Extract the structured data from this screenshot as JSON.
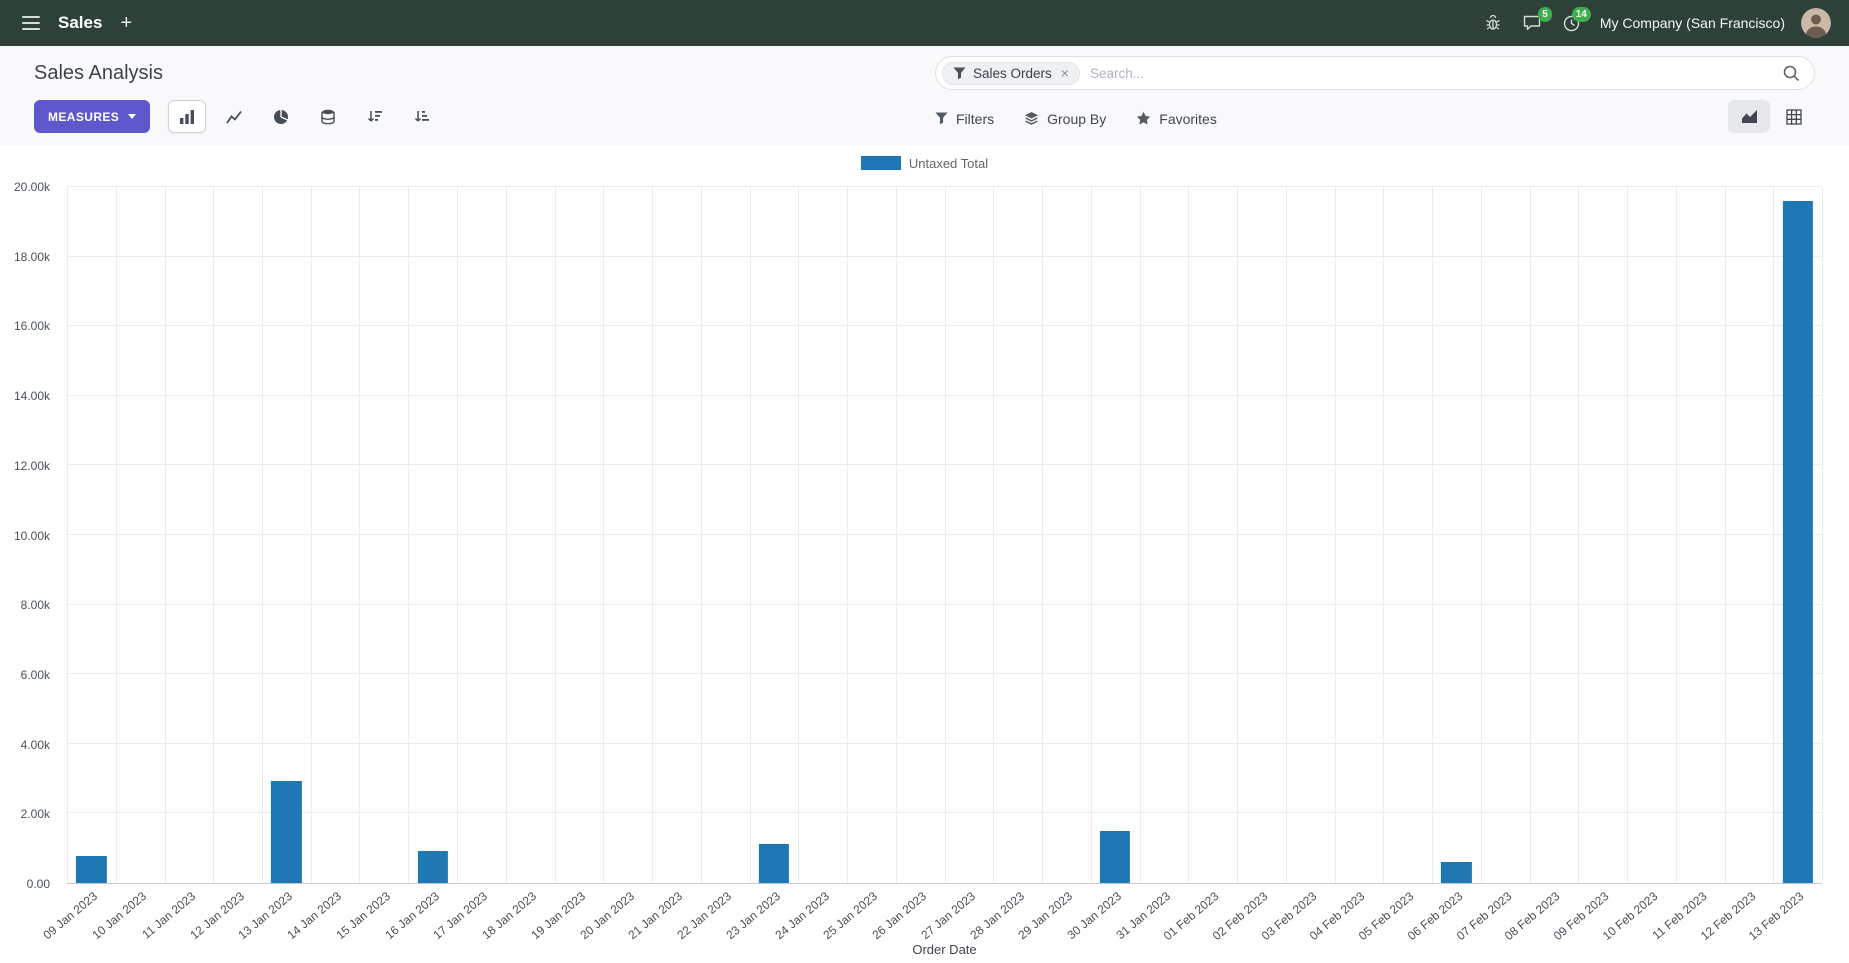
{
  "navbar": {
    "app_name": "Sales",
    "company": "My Company (San Francisco)",
    "message_badge": "5",
    "activity_badge": "14"
  },
  "icons": {
    "close": "×",
    "plus": "+"
  },
  "control_panel": {
    "title": "Sales Analysis",
    "measures_label": "Measures",
    "search": {
      "facet_label": "Sales Orders",
      "placeholder": "Search..."
    },
    "filters_label": "Filters",
    "group_by_label": "Group By",
    "favorites_label": "Favorites"
  },
  "colors": {
    "navbar_bg": "#2e4139",
    "primary_button": "#5f57ce",
    "badge_green": "#3fae4f",
    "bar_series": "#1f77b4"
  },
  "chart_data": {
    "type": "bar",
    "title": "",
    "legend": [
      "Untaxed Total"
    ],
    "series_color": "#1f77b4",
    "xlabel": "Order Date",
    "ylabel": "",
    "ylim": [
      0,
      20000
    ],
    "grid": true,
    "legend_position": "top-center",
    "yticks": [
      "0.00",
      "2.00k",
      "4.00k",
      "6.00k",
      "8.00k",
      "10.00k",
      "12.00k",
      "14.00k",
      "16.00k",
      "18.00k",
      "20.00k"
    ],
    "categories": [
      "09 Jan 2023",
      "10 Jan 2023",
      "11 Jan 2023",
      "12 Jan 2023",
      "13 Jan 2023",
      "14 Jan 2023",
      "15 Jan 2023",
      "16 Jan 2023",
      "17 Jan 2023",
      "18 Jan 2023",
      "19 Jan 2023",
      "20 Jan 2023",
      "21 Jan 2023",
      "22 Jan 2023",
      "23 Jan 2023",
      "24 Jan 2023",
      "25 Jan 2023",
      "26 Jan 2023",
      "27 Jan 2023",
      "28 Jan 2023",
      "29 Jan 2023",
      "30 Jan 2023",
      "31 Jan 2023",
      "01 Feb 2023",
      "02 Feb 2023",
      "03 Feb 2023",
      "04 Feb 2023",
      "05 Feb 2023",
      "06 Feb 2023",
      "07 Feb 2023",
      "08 Feb 2023",
      "09 Feb 2023",
      "10 Feb 2023",
      "11 Feb 2023",
      "12 Feb 2023",
      "13 Feb 2023"
    ],
    "values": [
      780,
      0,
      0,
      0,
      2940,
      0,
      0,
      910,
      0,
      0,
      0,
      0,
      0,
      0,
      1120,
      0,
      0,
      0,
      0,
      0,
      0,
      1490,
      0,
      0,
      0,
      0,
      0,
      0,
      610,
      0,
      0,
      0,
      0,
      0,
      0,
      19600
    ]
  }
}
